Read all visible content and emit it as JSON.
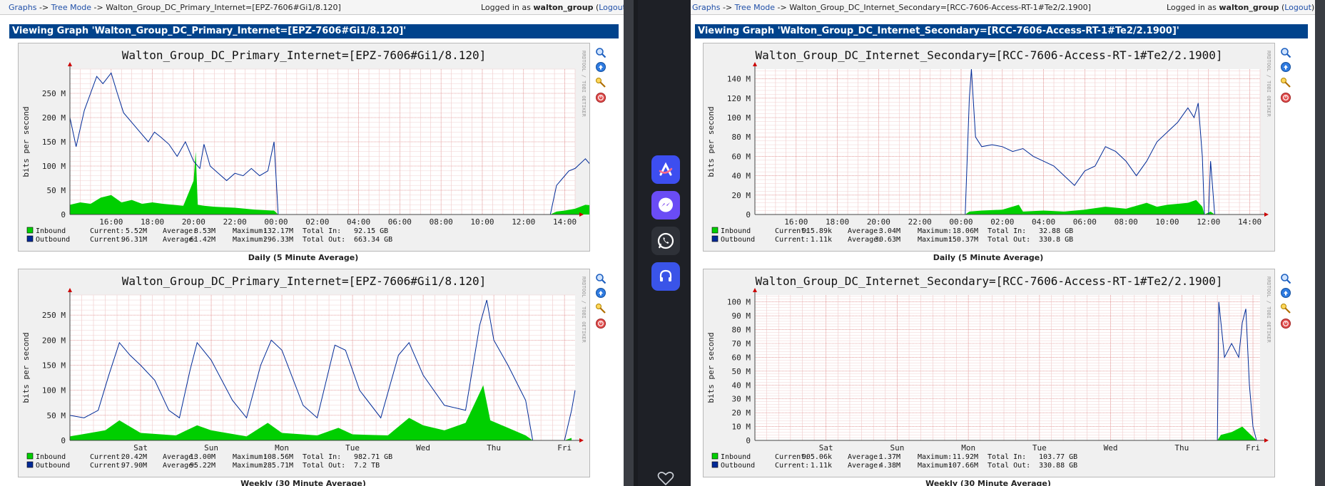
{
  "left": {
    "crumbs": {
      "graphs": "Graphs",
      "sep1": " -> ",
      "tree": "Tree Mode",
      "sep2": " -> ",
      "current": "Walton_Group_DC_Primary_Internet=[EPZ-7606#Gi1/8.120]"
    },
    "login": {
      "prefix": "Logged in as ",
      "user": "walton_group",
      "open": " (",
      "logout": "Logout",
      "close": ")"
    },
    "viewing": "Viewing Graph 'Walton_Group_DC_Primary_Internet=[EPZ-7606#Gi1/8.120]'",
    "daily": {
      "title": "Walton_Group_DC_Primary_Internet=[EPZ-7606#Gi1/8.120]",
      "ylabel": "bits per second",
      "side": "RRDTOOL / TOBI OETIKER",
      "caption": "Daily (5 Minute Average)",
      "yticks": [
        {
          "v": 0,
          "l": "0"
        },
        {
          "v": 50,
          "l": "50 M"
        },
        {
          "v": 100,
          "l": "100 M"
        },
        {
          "v": 150,
          "l": "150 M"
        },
        {
          "v": 200,
          "l": "200 M"
        },
        {
          "v": 250,
          "l": "250 M"
        }
      ],
      "ymax": 300,
      "xticks": [
        {
          "x": 2,
          "l": "16:00"
        },
        {
          "x": 4,
          "l": "18:00"
        },
        {
          "x": 6,
          "l": "20:00"
        },
        {
          "x": 8,
          "l": "22:00"
        },
        {
          "x": 10,
          "l": "00:00"
        },
        {
          "x": 12,
          "l": "02:00"
        },
        {
          "x": 14,
          "l": "04:00"
        },
        {
          "x": 16,
          "l": "06:00"
        },
        {
          "x": 18,
          "l": "08:00"
        },
        {
          "x": 20,
          "l": "10:00"
        },
        {
          "x": 22,
          "l": "12:00"
        },
        {
          "x": 24,
          "l": "14:00"
        }
      ],
      "xmax": 24.5,
      "outbound": [
        [
          0,
          200
        ],
        [
          0.3,
          140
        ],
        [
          0.7,
          215
        ],
        [
          1.0,
          250
        ],
        [
          1.3,
          285
        ],
        [
          1.6,
          270
        ],
        [
          2.0,
          292
        ],
        [
          2.3,
          250
        ],
        [
          2.6,
          210
        ],
        [
          3.0,
          190
        ],
        [
          3.4,
          170
        ],
        [
          3.8,
          150
        ],
        [
          4.1,
          170
        ],
        [
          4.4,
          160
        ],
        [
          4.8,
          145
        ],
        [
          5.2,
          120
        ],
        [
          5.6,
          150
        ],
        [
          6.0,
          110
        ],
        [
          6.3,
          95
        ],
        [
          6.5,
          145
        ],
        [
          6.8,
          100
        ],
        [
          7.2,
          85
        ],
        [
          7.6,
          70
        ],
        [
          8.0,
          85
        ],
        [
          8.4,
          80
        ],
        [
          8.8,
          95
        ],
        [
          9.2,
          80
        ],
        [
          9.6,
          90
        ],
        [
          9.9,
          150
        ],
        [
          10.1,
          0
        ],
        [
          23.3,
          0
        ],
        [
          23.4,
          20
        ],
        [
          23.6,
          60
        ],
        [
          23.9,
          75
        ],
        [
          24.2,
          90
        ],
        [
          24.5,
          95
        ],
        [
          25,
          115
        ],
        [
          25.4,
          95
        ],
        [
          25.7,
          100
        ]
      ],
      "inbound": [
        [
          0,
          20
        ],
        [
          0.5,
          25
        ],
        [
          1,
          22
        ],
        [
          1.5,
          35
        ],
        [
          2,
          40
        ],
        [
          2.5,
          25
        ],
        [
          3,
          30
        ],
        [
          3.5,
          22
        ],
        [
          4,
          25
        ],
        [
          4.5,
          22
        ],
        [
          5,
          20
        ],
        [
          5.5,
          18
        ],
        [
          6.0,
          70
        ],
        [
          6.1,
          130
        ],
        [
          6.2,
          20
        ],
        [
          6.5,
          18
        ],
        [
          7,
          16
        ],
        [
          8,
          14
        ],
        [
          9,
          10
        ],
        [
          9.9,
          8
        ],
        [
          10.1,
          0
        ],
        [
          23.3,
          0
        ],
        [
          23.6,
          6
        ],
        [
          24,
          8
        ],
        [
          24.5,
          12
        ],
        [
          25,
          20
        ],
        [
          25.5,
          18
        ],
        [
          25.7,
          10
        ]
      ],
      "legend": [
        {
          "name": "Inbound",
          "current": "5.52M",
          "average": "8.53M",
          "maximum": "132.17M",
          "totalk": "Total In: ",
          "total": "92.15 GB",
          "color": "#00cf00"
        },
        {
          "name": "Outbound",
          "current": "96.31M",
          "average": "61.42M",
          "maximum": "296.33M",
          "totalk": "Total Out:",
          "total": "663.34 GB",
          "color": "#002a97"
        }
      ]
    },
    "weekly": {
      "title": "Walton_Group_DC_Primary_Internet=[EPZ-7606#Gi1/8.120]",
      "ylabel": "bits per second",
      "side": "RRDTOOL / TOBI OETIKER",
      "caption": "Weekly (30 Minute Average)",
      "yticks": [
        {
          "v": 0,
          "l": "0"
        },
        {
          "v": 50,
          "l": "50 M"
        },
        {
          "v": 100,
          "l": "100 M"
        },
        {
          "v": 150,
          "l": "150 M"
        },
        {
          "v": 200,
          "l": "200 M"
        },
        {
          "v": 250,
          "l": "250 M"
        }
      ],
      "ymax": 290,
      "xticks": [
        {
          "x": 1,
          "l": "Sat"
        },
        {
          "x": 2,
          "l": "Sun"
        },
        {
          "x": 3,
          "l": "Mon"
        },
        {
          "x": 4,
          "l": "Tue"
        },
        {
          "x": 5,
          "l": "Wed"
        },
        {
          "x": 6,
          "l": "Thu"
        },
        {
          "x": 7,
          "l": "Fri"
        }
      ],
      "xmax": 7.15,
      "outbound": [
        [
          0,
          50
        ],
        [
          0.2,
          45
        ],
        [
          0.4,
          60
        ],
        [
          0.55,
          130
        ],
        [
          0.7,
          195
        ],
        [
          0.85,
          170
        ],
        [
          1.0,
          150
        ],
        [
          1.2,
          120
        ],
        [
          1.4,
          60
        ],
        [
          1.55,
          45
        ],
        [
          1.7,
          140
        ],
        [
          1.8,
          195
        ],
        [
          2.0,
          160
        ],
        [
          2.3,
          80
        ],
        [
          2.5,
          45
        ],
        [
          2.7,
          150
        ],
        [
          2.85,
          200
        ],
        [
          3.0,
          180
        ],
        [
          3.3,
          70
        ],
        [
          3.5,
          45
        ],
        [
          3.75,
          190
        ],
        [
          3.9,
          180
        ],
        [
          4.1,
          100
        ],
        [
          4.4,
          45
        ],
        [
          4.65,
          170
        ],
        [
          4.8,
          195
        ],
        [
          5.0,
          130
        ],
        [
          5.3,
          70
        ],
        [
          5.6,
          60
        ],
        [
          5.8,
          230
        ],
        [
          5.9,
          280
        ],
        [
          6.0,
          200
        ],
        [
          6.2,
          150
        ],
        [
          6.45,
          80
        ],
        [
          6.55,
          0
        ],
        [
          7.0,
          0
        ],
        [
          7.1,
          60
        ],
        [
          7.15,
          100
        ]
      ],
      "inbound": [
        [
          0,
          8
        ],
        [
          0.5,
          20
        ],
        [
          0.7,
          40
        ],
        [
          1,
          15
        ],
        [
          1.5,
          10
        ],
        [
          1.8,
          30
        ],
        [
          2,
          20
        ],
        [
          2.5,
          8
        ],
        [
          2.8,
          35
        ],
        [
          3,
          15
        ],
        [
          3.5,
          10
        ],
        [
          3.8,
          25
        ],
        [
          4,
          12
        ],
        [
          4.5,
          10
        ],
        [
          4.8,
          45
        ],
        [
          5,
          30
        ],
        [
          5.3,
          20
        ],
        [
          5.6,
          35
        ],
        [
          5.85,
          110
        ],
        [
          5.95,
          40
        ],
        [
          6.2,
          25
        ],
        [
          6.45,
          10
        ],
        [
          6.55,
          0
        ],
        [
          7.0,
          0
        ],
        [
          7.1,
          5
        ]
      ],
      "legend": [
        {
          "name": "Inbound",
          "current": "20.42M",
          "average": "13.00M",
          "maximum": "108.56M",
          "totalk": "Total In: ",
          "total": "982.71 GB",
          "color": "#00cf00"
        },
        {
          "name": "Outbound",
          "current": "97.90M",
          "average": "95.22M",
          "maximum": "285.71M",
          "totalk": "Total Out:",
          "total": "7.2 TB",
          "color": "#002a97"
        }
      ]
    }
  },
  "right": {
    "crumbs": {
      "graphs": "Graphs",
      "sep1": " -> ",
      "tree": "Tree Mode",
      "sep2": " -> ",
      "current": "Walton_Group_DC_Internet_Secondary=[RCC-7606-Access-RT-1#Te2/2.1900]"
    },
    "login": {
      "prefix": "Logged in as ",
      "user": "walton_group",
      "open": " (",
      "logout": "Logout",
      "close": ")"
    },
    "viewing": "Viewing Graph 'Walton_Group_DC_Internet_Secondary=[RCC-7606-Access-RT-1#Te2/2.1900]'",
    "daily": {
      "title": "Walton_Group_DC_Internet_Secondary=[RCC-7606-Access-RT-1#Te2/2.1900]",
      "ylabel": "bits per second",
      "side": "RRDTOOL / TOBI OETIKER",
      "caption": "Daily (5 Minute Average)",
      "yticks": [
        {
          "v": 0,
          "l": "0"
        },
        {
          "v": 20,
          "l": "20 M"
        },
        {
          "v": 40,
          "l": "40 M"
        },
        {
          "v": 60,
          "l": "60 M"
        },
        {
          "v": 80,
          "l": "80 M"
        },
        {
          "v": 100,
          "l": "100 M"
        },
        {
          "v": 120,
          "l": "120 M"
        },
        {
          "v": 140,
          "l": "140 M"
        }
      ],
      "ymax": 150,
      "xticks": [
        {
          "x": 2,
          "l": "16:00"
        },
        {
          "x": 4,
          "l": "18:00"
        },
        {
          "x": 6,
          "l": "20:00"
        },
        {
          "x": 8,
          "l": "22:00"
        },
        {
          "x": 10,
          "l": "00:00"
        },
        {
          "x": 12,
          "l": "02:00"
        },
        {
          "x": 14,
          "l": "04:00"
        },
        {
          "x": 16,
          "l": "06:00"
        },
        {
          "x": 18,
          "l": "08:00"
        },
        {
          "x": 20,
          "l": "10:00"
        },
        {
          "x": 22,
          "l": "12:00"
        },
        {
          "x": 24,
          "l": "14:00"
        }
      ],
      "xmax": 24.5,
      "outbound": [
        [
          0,
          0
        ],
        [
          10.2,
          0
        ],
        [
          10.4,
          120
        ],
        [
          10.5,
          150
        ],
        [
          10.7,
          80
        ],
        [
          11,
          70
        ],
        [
          11.5,
          72
        ],
        [
          12,
          70
        ],
        [
          12.5,
          65
        ],
        [
          13,
          68
        ],
        [
          13.5,
          60
        ],
        [
          14,
          55
        ],
        [
          14.5,
          50
        ],
        [
          15,
          40
        ],
        [
          15.5,
          30
        ],
        [
          16,
          45
        ],
        [
          16.5,
          50
        ],
        [
          17,
          70
        ],
        [
          17.5,
          65
        ],
        [
          18,
          55
        ],
        [
          18.5,
          40
        ],
        [
          19,
          55
        ],
        [
          19.5,
          75
        ],
        [
          20,
          85
        ],
        [
          20.5,
          95
        ],
        [
          21,
          110
        ],
        [
          21.3,
          100
        ],
        [
          21.5,
          115
        ],
        [
          21.7,
          60
        ],
        [
          21.8,
          0
        ],
        [
          22.0,
          0
        ],
        [
          22.1,
          55
        ],
        [
          22.3,
          0
        ],
        [
          24.5,
          0
        ]
      ],
      "inbound": [
        [
          0,
          0
        ],
        [
          10.2,
          0
        ],
        [
          10.4,
          3
        ],
        [
          11,
          4
        ],
        [
          12,
          5
        ],
        [
          12.8,
          10
        ],
        [
          13,
          3
        ],
        [
          14,
          4
        ],
        [
          15,
          3
        ],
        [
          16,
          5
        ],
        [
          17,
          8
        ],
        [
          18,
          6
        ],
        [
          19,
          12
        ],
        [
          19.5,
          8
        ],
        [
          20,
          10
        ],
        [
          21,
          12
        ],
        [
          21.4,
          15
        ],
        [
          21.7,
          8
        ],
        [
          21.8,
          0
        ],
        [
          22.1,
          3
        ],
        [
          22.3,
          0
        ],
        [
          24.5,
          0
        ]
      ],
      "legend": [
        {
          "name": "Inbound",
          "current": "915.89k",
          "average": "3.04M",
          "maximum": "18.06M",
          "totalk": "Total In: ",
          "total": "32.88 GB",
          "color": "#00cf00"
        },
        {
          "name": "Outbound",
          "current": "1.11k",
          "average": "30.63M",
          "maximum": "150.37M",
          "totalk": "Total Out:",
          "total": "330.8 GB",
          "color": "#002a97"
        }
      ]
    },
    "weekly": {
      "title": "Walton_Group_DC_Internet_Secondary=[RCC-7606-Access-RT-1#Te2/2.1900]",
      "ylabel": "bits per second",
      "side": "RRDTOOL / TOBI OETIKER",
      "caption": "Weekly (30 Minute Average)",
      "yticks": [
        {
          "v": 0,
          "l": "0"
        },
        {
          "v": 10,
          "l": "10 M"
        },
        {
          "v": 20,
          "l": "20 M"
        },
        {
          "v": 30,
          "l": "30 M"
        },
        {
          "v": 40,
          "l": "40 M"
        },
        {
          "v": 50,
          "l": "50 M"
        },
        {
          "v": 60,
          "l": "60 M"
        },
        {
          "v": 70,
          "l": "70 M"
        },
        {
          "v": 80,
          "l": "80 M"
        },
        {
          "v": 90,
          "l": "90 M"
        },
        {
          "v": 100,
          "l": "100 M"
        }
      ],
      "ymax": 105,
      "xticks": [
        {
          "x": 1,
          "l": "Sat"
        },
        {
          "x": 2,
          "l": "Sun"
        },
        {
          "x": 3,
          "l": "Mon"
        },
        {
          "x": 4,
          "l": "Tue"
        },
        {
          "x": 5,
          "l": "Wed"
        },
        {
          "x": 6,
          "l": "Thu"
        },
        {
          "x": 7,
          "l": "Fri"
        }
      ],
      "xmax": 7.1,
      "outbound": [
        [
          0,
          0
        ],
        [
          6.5,
          0
        ],
        [
          6.52,
          100
        ],
        [
          6.6,
          60
        ],
        [
          6.7,
          70
        ],
        [
          6.8,
          60
        ],
        [
          6.85,
          85
        ],
        [
          6.9,
          95
        ],
        [
          6.95,
          40
        ],
        [
          7.0,
          10
        ],
        [
          7.05,
          0
        ],
        [
          7.1,
          0
        ]
      ],
      "inbound": [
        [
          0,
          0
        ],
        [
          6.5,
          0
        ],
        [
          6.55,
          4
        ],
        [
          6.7,
          6
        ],
        [
          6.85,
          10
        ],
        [
          6.95,
          5
        ],
        [
          7.05,
          0
        ],
        [
          7.1,
          0
        ]
      ],
      "legend": [
        {
          "name": "Inbound",
          "current": "905.06k",
          "average": "1.37M",
          "maximum": "11.92M",
          "totalk": "Total In: ",
          "total": "103.77 GB",
          "color": "#00cf00"
        },
        {
          "name": "Outbound",
          "current": "1.11k",
          "average": "4.38M",
          "maximum": "107.66M",
          "totalk": "Total Out:",
          "total": "330.88 GB",
          "color": "#002a97"
        }
      ]
    }
  },
  "legend_keys": {
    "current": "Current:",
    "average": "Average:",
    "maximum": "Maximum:"
  },
  "dock": [
    {
      "icon": "arc-launcher-icon",
      "color": "#3d4ef0"
    },
    {
      "icon": "messenger-icon",
      "color": "#6a4cf5"
    },
    {
      "icon": "whatsapp-icon",
      "color": "#2e3138"
    },
    {
      "icon": "headset-icon",
      "color": "#3a54e8"
    }
  ],
  "colors": {
    "header_bg": "#00438c",
    "inbound": "#00cf00",
    "outbound": "#002a97",
    "link": "#1f4fa8"
  }
}
